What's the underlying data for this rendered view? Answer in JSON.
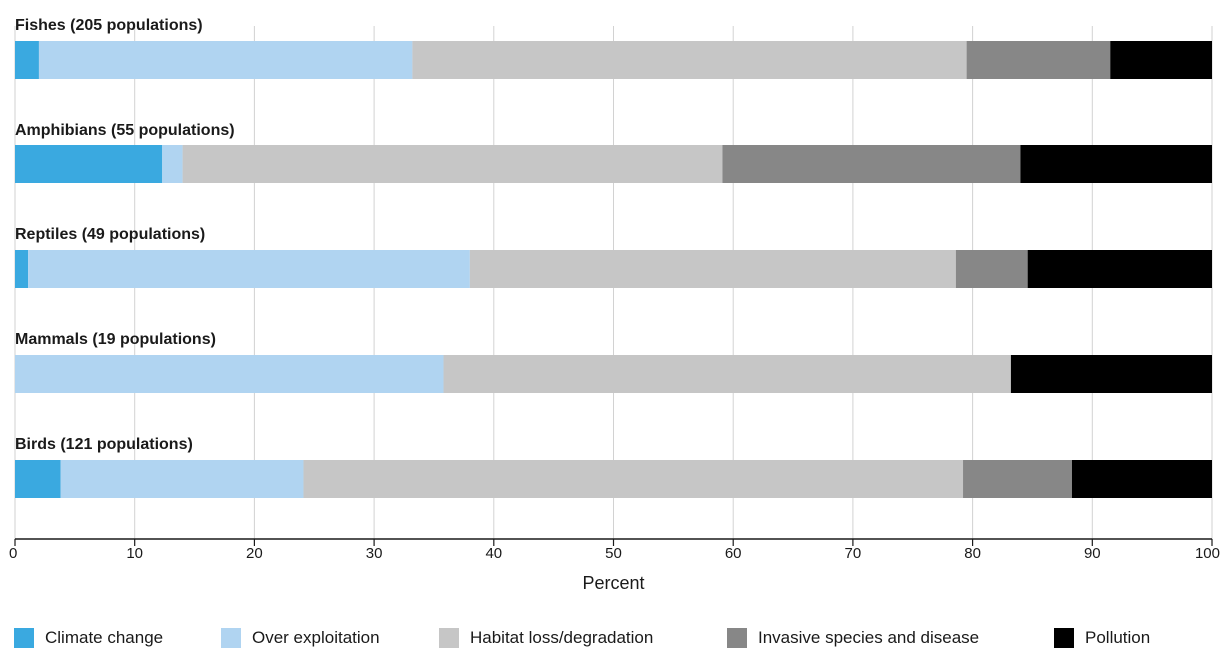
{
  "chart_data": {
    "type": "bar",
    "orientation": "horizontal",
    "stacked": true,
    "categories": [
      "Fishes (205 populations)",
      "Amphibians (55 populations)",
      "Reptiles (49 populations)",
      "Mammals (19 populations)",
      "Birds (121 populations)"
    ],
    "series": [
      {
        "name": "Climate change",
        "color": "#3aa9e0",
        "values": [
          2.0,
          12.3,
          1.1,
          0.0,
          3.8
        ]
      },
      {
        "name": "Over exploitation",
        "color": "#b0d4f1",
        "values": [
          31.2,
          1.7,
          36.9,
          35.8,
          20.3
        ]
      },
      {
        "name": "Habitat loss/degradation",
        "color": "#c6c6c6",
        "values": [
          46.3,
          45.1,
          40.6,
          47.4,
          55.1
        ]
      },
      {
        "name": "Invasive species and disease",
        "color": "#878787",
        "values": [
          12.0,
          24.9,
          6.0,
          0.0,
          9.1
        ]
      },
      {
        "name": "Pollution",
        "color": "#000000",
        "values": [
          8.5,
          16.0,
          15.4,
          16.8,
          11.7
        ]
      }
    ],
    "xlabel": "Percent",
    "ylabel": "",
    "xlim": [
      0,
      100
    ],
    "xticks": [
      "0",
      "10",
      "20",
      "30",
      "40",
      "50",
      "60",
      "70",
      "80",
      "90",
      "100"
    ],
    "grid": true,
    "legend": "bottom"
  }
}
